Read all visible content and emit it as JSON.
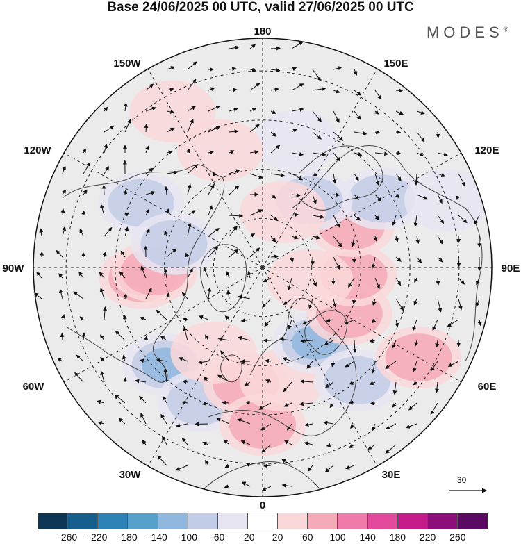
{
  "title": "Base 24/06/2025 00 UTC, valid 27/06/2025 00 UTC",
  "brand": "MODES",
  "brand_mark": "®",
  "meridian_labels": {
    "top": "180",
    "top_left": "150W",
    "top_right": "150E",
    "upper_left": "120W",
    "upper_right": "120E",
    "left": "90W",
    "right": "90E",
    "lower_left": "60W",
    "lower_right": "60E",
    "bottom_left": "30W",
    "bottom_right": "30E",
    "bottom": "0"
  },
  "vector_scale": {
    "label": "30",
    "icon": "arrow-right-icon"
  },
  "colorbar": {
    "ticks": [
      "-260",
      "-220",
      "-180",
      "-140",
      "-100",
      "-60",
      "-20",
      "20",
      "60",
      "100",
      "140",
      "180",
      "220",
      "260"
    ],
    "colors": [
      "#0d3655",
      "#165f8c",
      "#2e81b5",
      "#56a0cc",
      "#8fb7dd",
      "#c3cce6",
      "#e7e5f2",
      "#ffffff",
      "#fad8d9",
      "#f5aab7",
      "#f07bab",
      "#e44a9c",
      "#c51b8a",
      "#8d0e7a",
      "#5a0a62"
    ]
  },
  "anomalies": [
    {
      "lon": -85,
      "lat": 53,
      "value": 150
    },
    {
      "lon": -88,
      "lat": 57,
      "value": 90
    },
    {
      "lon": -118,
      "lat": 48,
      "value": -70
    },
    {
      "lon": -105,
      "lat": 62,
      "value": -60
    },
    {
      "lon": -45,
      "lat": 48,
      "value": -110
    },
    {
      "lon": -25,
      "lat": 45,
      "value": -60
    },
    {
      "lon": -8,
      "lat": 54,
      "value": 80
    },
    {
      "lon": 0,
      "lat": 42,
      "value": 60
    },
    {
      "lon": 10,
      "lat": 55,
      "value": 50
    },
    {
      "lon": 35,
      "lat": 62,
      "value": -120
    },
    {
      "lon": 40,
      "lat": 45,
      "value": -60
    },
    {
      "lon": 62,
      "lat": 60,
      "value": 60
    },
    {
      "lon": 85,
      "lat": 62,
      "value": 90
    },
    {
      "lon": 115,
      "lat": 60,
      "value": 70
    },
    {
      "lon": 120,
      "lat": 48,
      "value": -60
    },
    {
      "lon": 145,
      "lat": 65,
      "value": -90
    },
    {
      "lon": 160,
      "lat": 72,
      "value": 40
    },
    {
      "lon": 165,
      "lat": 50,
      "value": -40
    },
    {
      "lon": -160,
      "lat": 52,
      "value": 50
    },
    {
      "lon": -150,
      "lat": 35,
      "value": 50
    },
    {
      "lon": 60,
      "lat": 35,
      "value": 60
    },
    {
      "lon": 110,
      "lat": 30,
      "value": -40
    },
    {
      "lon": -30,
      "lat": 60,
      "value": 50
    },
    {
      "lon": 75,
      "lat": 75,
      "value": 50
    }
  ]
}
